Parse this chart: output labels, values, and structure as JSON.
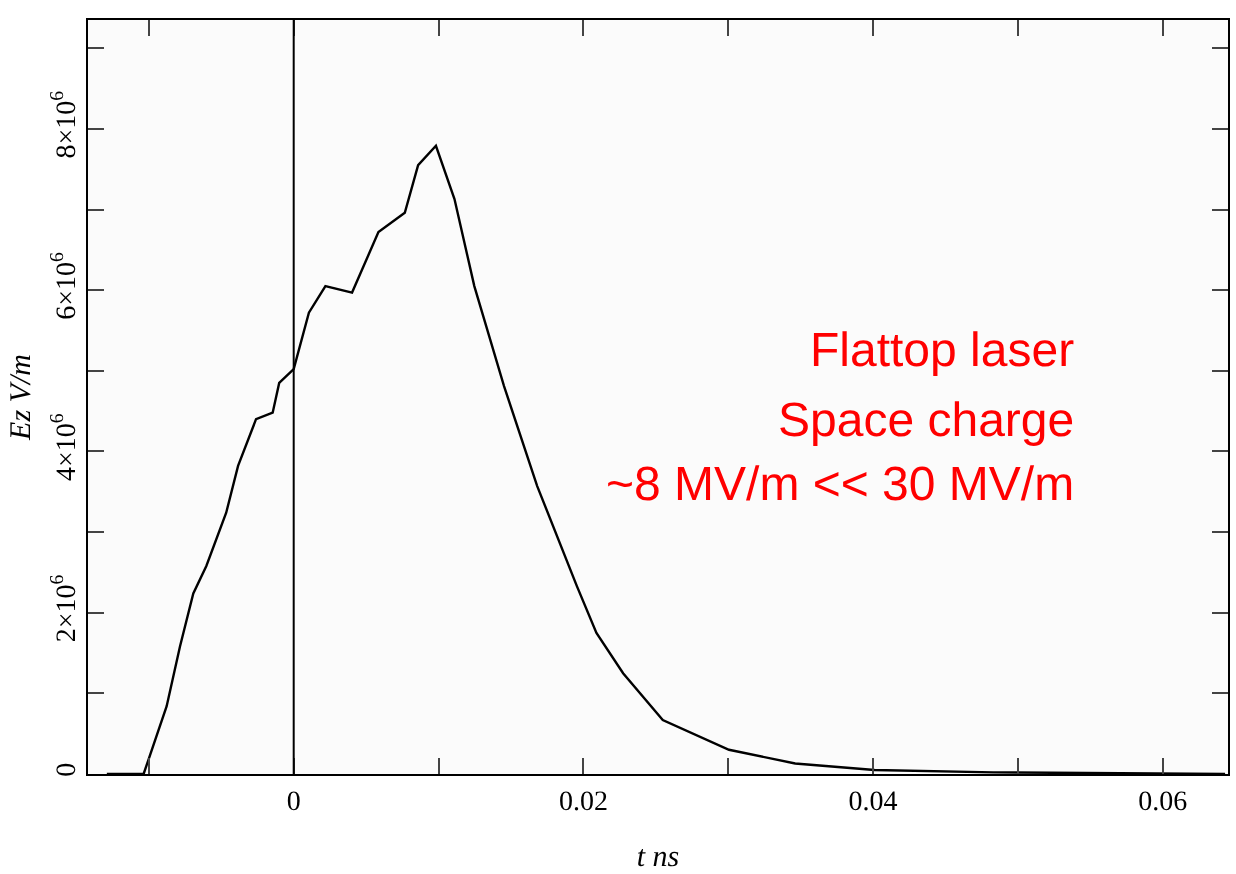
{
  "chart_data": {
    "type": "line",
    "xlabel": "t ns",
    "ylabel": "Ez V/m",
    "x": [
      -0.0129,
      -0.01036,
      -0.01004,
      -0.00877,
      -0.00785,
      -0.00693,
      -0.00603,
      -0.00466,
      -0.00384,
      -0.0026,
      -0.00145,
      -0.001,
      0,
      0.00105,
      0.00219,
      0.00403,
      0.00585,
      0.00767,
      0.00859,
      0.00982,
      0.0111,
      0.01247,
      0.01452,
      0.01681,
      0.01955,
      0.0209,
      0.02274,
      0.02548,
      0.03005,
      0.03462,
      0.0401,
      0.0483,
      0.0643
    ],
    "series": [
      {
        "color": "#000000",
        "values": [
          0,
          0,
          170000,
          840000,
          1580000,
          2240000,
          2580000,
          3240000,
          3820000,
          4400000,
          4480000,
          4850000,
          5020000,
          5720000,
          6050000,
          5970000,
          6720000,
          6960000,
          7550000,
          7790000,
          7130000,
          6050000,
          4810000,
          3570000,
          2330000,
          1750000,
          1250000,
          670000,
          300000,
          130000,
          50000,
          20000,
          0
        ]
      }
    ],
    "xlim": [
      -0.0142,
      0.0645
    ],
    "xticks": [
      {
        "value": -0.01,
        "label": null
      },
      0,
      {
        "value": 0.01,
        "label": null
      },
      0.02,
      {
        "value": 0.03,
        "label": null
      },
      0.04,
      {
        "value": 0.05,
        "label": null
      },
      0.06
    ],
    "ylim": [
      0,
      9350000
    ],
    "yticks": [
      0,
      {
        "value": 1000000,
        "label": null
      },
      {
        "value": 2000000,
        "label": "2×10$^{6}$"
      },
      {
        "value": 3000000,
        "label": null
      },
      {
        "value": 4000000,
        "label": "4×10$^{6}$"
      },
      {
        "value": 5000000,
        "label": null
      },
      {
        "value": 6000000,
        "label": "6×10$^{6}$"
      },
      {
        "value": 7000000,
        "label": null
      },
      {
        "value": 8000000,
        "label": "8×10$^{6}$"
      },
      {
        "value": 9000000,
        "label": null
      }
    ],
    "ref_lines": [
      {
        "axis": "x",
        "value": 0,
        "color": "#000000"
      }
    ],
    "annotations": [
      "Flattop laser",
      "Space charge",
      "~8 MV/m << 30 MV/m"
    ],
    "marker": "none",
    "line_style": "solid"
  }
}
